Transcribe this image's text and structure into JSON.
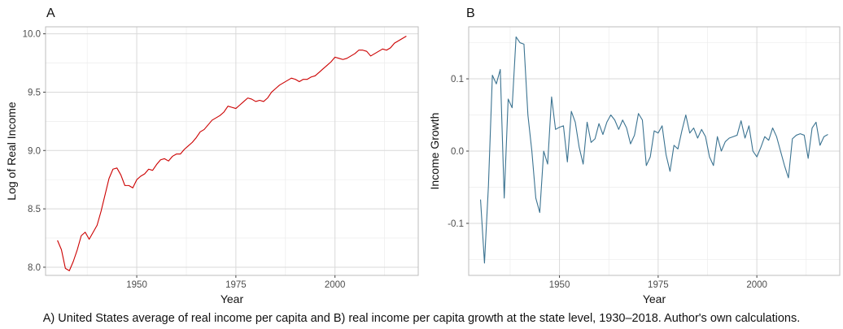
{
  "chart_data": [
    {
      "panel": "A",
      "type": "line",
      "xlabel": "Year",
      "ylabel": "Log of Real Income",
      "xlim": [
        1927,
        2021
      ],
      "ylim": [
        7.93,
        10.06
      ],
      "xticks": [
        "1950",
        "1975",
        "2000"
      ],
      "yticks": [
        "8.0",
        "8.5",
        "9.0",
        "9.5",
        "10.0"
      ],
      "grid": true,
      "color": "#cc0000",
      "x": [
        1930,
        1931,
        1932,
        1933,
        1934,
        1935,
        1936,
        1937,
        1938,
        1939,
        1940,
        1941,
        1942,
        1943,
        1944,
        1945,
        1946,
        1947,
        1948,
        1949,
        1950,
        1951,
        1952,
        1953,
        1954,
        1955,
        1956,
        1957,
        1958,
        1959,
        1960,
        1961,
        1962,
        1963,
        1964,
        1965,
        1966,
        1967,
        1968,
        1969,
        1970,
        1971,
        1972,
        1973,
        1974,
        1975,
        1976,
        1977,
        1978,
        1979,
        1980,
        1981,
        1982,
        1983,
        1984,
        1985,
        1986,
        1987,
        1988,
        1989,
        1990,
        1991,
        1992,
        1993,
        1994,
        1995,
        1996,
        1997,
        1998,
        1999,
        2000,
        2001,
        2002,
        2003,
        2004,
        2005,
        2006,
        2007,
        2008,
        2009,
        2010,
        2011,
        2012,
        2013,
        2014,
        2015,
        2016,
        2017,
        2018
      ],
      "y": [
        8.23,
        8.15,
        7.99,
        7.97,
        8.05,
        8.15,
        8.27,
        8.3,
        8.24,
        8.3,
        8.36,
        8.48,
        8.62,
        8.76,
        8.84,
        8.85,
        8.79,
        8.7,
        8.7,
        8.68,
        8.75,
        8.78,
        8.8,
        8.84,
        8.83,
        8.88,
        8.92,
        8.93,
        8.91,
        8.95,
        8.97,
        8.97,
        9.01,
        9.04,
        9.07,
        9.11,
        9.16,
        9.18,
        9.22,
        9.26,
        9.28,
        9.3,
        9.33,
        9.38,
        9.37,
        9.36,
        9.39,
        9.42,
        9.45,
        9.44,
        9.42,
        9.43,
        9.42,
        9.45,
        9.5,
        9.53,
        9.56,
        9.58,
        9.6,
        9.62,
        9.61,
        9.59,
        9.61,
        9.61,
        9.63,
        9.64,
        9.67,
        9.7,
        9.73,
        9.76,
        9.8,
        9.79,
        9.78,
        9.79,
        9.81,
        9.83,
        9.86,
        9.86,
        9.85,
        9.81,
        9.83,
        9.85,
        9.87,
        9.86,
        9.88,
        9.92,
        9.94,
        9.96,
        9.98
      ]
    },
    {
      "panel": "B",
      "type": "line",
      "xlabel": "Year",
      "ylabel": "Income Growth",
      "xlim": [
        1927,
        2021
      ],
      "ylim": [
        -0.172,
        0.172
      ],
      "xticks": [
        "1950",
        "1975",
        "2000"
      ],
      "yticks": [
        "-0.1",
        "0.0",
        "0.1"
      ],
      "grid": true,
      "color": "#3b7391",
      "x": [
        1930,
        1931,
        1932,
        1933,
        1934,
        1935,
        1936,
        1937,
        1938,
        1939,
        1940,
        1941,
        1942,
        1943,
        1944,
        1945,
        1946,
        1947,
        1948,
        1949,
        1950,
        1951,
        1952,
        1953,
        1954,
        1955,
        1956,
        1957,
        1958,
        1959,
        1960,
        1961,
        1962,
        1963,
        1964,
        1965,
        1966,
        1967,
        1968,
        1969,
        1970,
        1971,
        1972,
        1973,
        1974,
        1975,
        1976,
        1977,
        1978,
        1979,
        1980,
        1981,
        1982,
        1983,
        1984,
        1985,
        1986,
        1987,
        1988,
        1989,
        1990,
        1991,
        1992,
        1993,
        1994,
        1995,
        1996,
        1997,
        1998,
        1999,
        2000,
        2001,
        2002,
        2003,
        2004,
        2005,
        2006,
        2007,
        2008,
        2009,
        2010,
        2011,
        2012,
        2013,
        2014,
        2015,
        2016,
        2017,
        2018
      ],
      "y": [
        -0.067,
        -0.155,
        -0.048,
        0.105,
        0.093,
        0.113,
        -0.065,
        0.072,
        0.06,
        0.158,
        0.15,
        0.148,
        0.05,
        0.0,
        -0.065,
        -0.085,
        0.0,
        -0.018,
        0.075,
        0.03,
        0.033,
        0.035,
        -0.015,
        0.055,
        0.04,
        0.005,
        -0.018,
        0.04,
        0.012,
        0.017,
        0.038,
        0.023,
        0.04,
        0.05,
        0.043,
        0.03,
        0.043,
        0.032,
        0.01,
        0.022,
        0.052,
        0.043,
        -0.02,
        -0.008,
        0.028,
        0.025,
        0.035,
        -0.005,
        -0.028,
        0.008,
        0.003,
        0.028,
        0.05,
        0.025,
        0.032,
        0.018,
        0.03,
        0.02,
        -0.008,
        -0.02,
        0.02,
        0.0,
        0.013,
        0.018,
        0.02,
        0.022,
        0.042,
        0.018,
        0.035,
        0.0,
        -0.008,
        0.005,
        0.02,
        0.015,
        0.032,
        0.02,
        0.0,
        -0.02,
        -0.037,
        0.017,
        0.022,
        0.024,
        0.022,
        -0.01,
        0.032,
        0.04,
        0.008,
        0.02,
        0.023
      ]
    }
  ],
  "caption": "A) United States average of real income per capita and B) real income per capita growth at the state level, 1930–2018. Author's own calculations."
}
